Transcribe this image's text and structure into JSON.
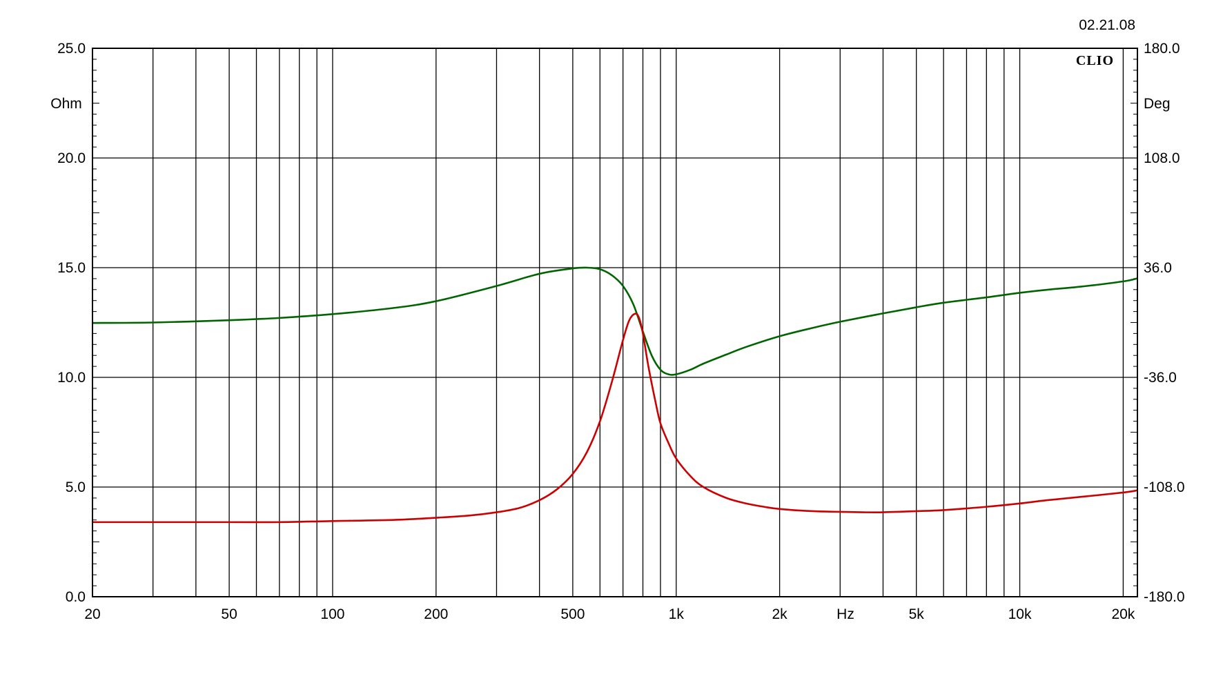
{
  "date": "02.21.08",
  "brand": "CLIO",
  "colors": {
    "background": "#ffffff",
    "grid": "#000000",
    "impedance": "#cc0000",
    "phase": "#006400"
  },
  "chart_data": {
    "type": "line",
    "title": "",
    "xlabel": "Hz",
    "ylabel": "Ohm",
    "y2label": "Deg",
    "xscale": "log",
    "xlim": [
      20,
      22000
    ],
    "ylim": [
      0,
      25
    ],
    "y2lim": [
      -180,
      180
    ],
    "grid": true,
    "x_tick_values": [
      20,
      50,
      100,
      200,
      500,
      1000,
      2000,
      5000,
      10000,
      20000
    ],
    "x_tick_labels": [
      "20",
      "50",
      "100",
      "200",
      "500",
      "1k",
      "2k",
      "5k",
      "10k",
      "20k"
    ],
    "y_tick_values": [
      0,
      5,
      10,
      15,
      20,
      25
    ],
    "y_tick_labels": [
      "0.0",
      "5.0",
      "10.0",
      "15.0",
      "20.0",
      "25.0"
    ],
    "y2_tick_values": [
      -180,
      -108,
      -36,
      36,
      108,
      180
    ],
    "y2_tick_labels": [
      "-180.0",
      "-108.0",
      "-36.0",
      "36.0",
      "108.0",
      "180.0"
    ],
    "series": [
      {
        "axis": "left",
        "color": "#cc0000",
        "x": [
          20,
          30,
          50,
          70,
          100,
          150,
          200,
          250,
          300,
          350,
          400,
          450,
          500,
          550,
          600,
          650,
          700,
          730,
          760,
          780,
          800,
          830,
          870,
          900,
          950,
          1000,
          1100,
          1200,
          1400,
          1600,
          1800,
          2000,
          2500,
          3000,
          3500,
          4000,
          5000,
          6000,
          8000,
          10000,
          12000,
          15000,
          20000,
          22000
        ],
        "values": [
          3.4,
          3.4,
          3.4,
          3.4,
          3.45,
          3.5,
          3.6,
          3.7,
          3.85,
          4.05,
          4.4,
          4.9,
          5.6,
          6.6,
          8.0,
          9.8,
          11.7,
          12.6,
          12.9,
          12.7,
          12.0,
          10.5,
          8.9,
          7.9,
          7.0,
          6.3,
          5.5,
          5.0,
          4.5,
          4.25,
          4.1,
          4.0,
          3.9,
          3.87,
          3.85,
          3.85,
          3.9,
          3.95,
          4.1,
          4.25,
          4.4,
          4.55,
          4.75,
          4.85
        ]
      },
      {
        "axis": "right",
        "color": "#006400",
        "x": [
          20,
          30,
          50,
          70,
          100,
          150,
          200,
          300,
          400,
          500,
          550,
          600,
          650,
          700,
          750,
          800,
          850,
          900,
          950,
          1000,
          1100,
          1200,
          1400,
          1600,
          2000,
          2500,
          3000,
          4000,
          5000,
          6000,
          8000,
          10000,
          12000,
          15000,
          20000,
          22000
        ],
        "values": [
          -0.3,
          0.0,
          1.5,
          3.0,
          5.5,
          9.5,
          14.0,
          24.0,
          32.0,
          35.5,
          36.0,
          35.0,
          31.0,
          24.0,
          12.0,
          -6.0,
          -22.0,
          -31.0,
          -34.0,
          -34.0,
          -31.0,
          -27.0,
          -21.0,
          -16.0,
          -9.0,
          -3.5,
          0.5,
          6.0,
          10.0,
          13.0,
          16.5,
          19.5,
          21.5,
          23.5,
          27.0,
          29.0
        ]
      }
    ]
  }
}
